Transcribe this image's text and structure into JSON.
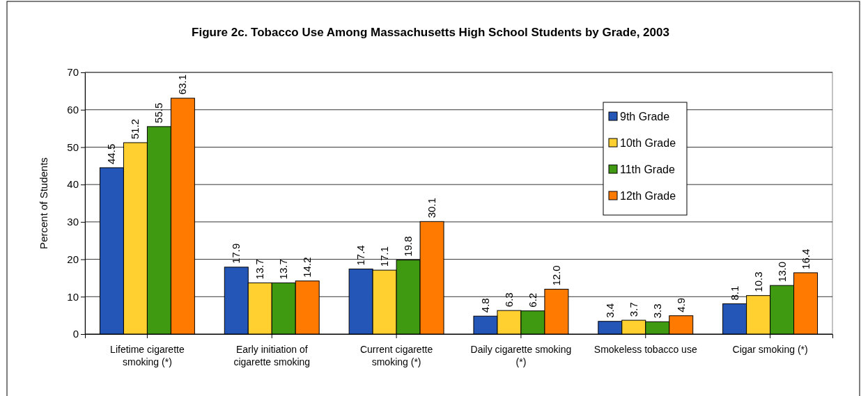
{
  "chart_data": {
    "type": "bar",
    "title": "Figure 2c.  Tobacco Use Among Massachusetts High School Students by Grade, 2003",
    "ylabel": "Percent of Students",
    "categories": [
      "Lifetime cigarette smoking (*)",
      "Early initiation of cigarette smoking",
      "Current cigarette smoking (*)",
      "Daily cigarette smoking (*)",
      "Smokeless tobacco use",
      "Cigar smoking (*)"
    ],
    "series": [
      {
        "name": "9th Grade",
        "color": "#2456b8",
        "values": [
          44.5,
          17.9,
          17.4,
          4.8,
          3.4,
          8.1
        ],
        "value_labels": [
          "44.5",
          "17.9",
          "17.4",
          "4.8",
          "3.4",
          "8.1"
        ]
      },
      {
        "name": "10th Grade",
        "color": "#ffd030",
        "values": [
          51.2,
          13.7,
          17.1,
          6.3,
          3.7,
          10.3
        ],
        "value_labels": [
          "51.2",
          "13.7",
          "17.1",
          "6.3",
          "3.7",
          "10.3"
        ]
      },
      {
        "name": "11th Grade",
        "color": "#3f9a12",
        "values": [
          55.5,
          13.7,
          19.8,
          6.2,
          3.3,
          13.0
        ],
        "value_labels": [
          "55.5",
          "13.7",
          "19.8",
          "6.2",
          "3.3",
          "13.0"
        ]
      },
      {
        "name": "12th Grade",
        "color": "#ff7a00",
        "values": [
          63.1,
          14.2,
          30.1,
          12.0,
          4.9,
          16.4
        ],
        "value_labels": [
          "63.1",
          "14.2",
          "30.1",
          "12.0",
          "4.9",
          "16.4"
        ]
      }
    ],
    "ylim": [
      0,
      70
    ],
    "yticks": [
      0,
      10,
      20,
      30,
      40,
      50,
      60,
      70
    ],
    "grid": "y",
    "legend": "top right"
  }
}
